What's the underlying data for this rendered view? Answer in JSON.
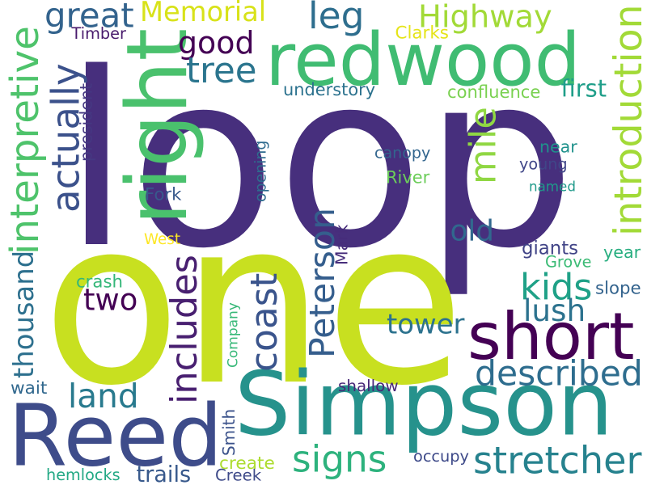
{
  "words": [
    {
      "text": "loop",
      "color": "#472f7d"
    },
    {
      "text": "one",
      "color": "#c8e020"
    },
    {
      "text": "Simpson",
      "color": "#26928c"
    },
    {
      "text": "Reed",
      "color": "#3e4c8a"
    },
    {
      "text": "redwood",
      "color": "#40bc72"
    },
    {
      "text": "short",
      "color": "#440154"
    },
    {
      "text": "right",
      "color": "#4ac16d"
    },
    {
      "text": "Highway",
      "color": "#a2da37"
    },
    {
      "text": "introduction",
      "color": "#a2da37"
    },
    {
      "text": "interpretive",
      "color": "#4ec36b"
    },
    {
      "text": "thousand",
      "color": "#2d708e"
    },
    {
      "text": "actually",
      "color": "#3b518b"
    },
    {
      "text": "stretcher",
      "color": "#26828e"
    },
    {
      "text": "described",
      "color": "#2e6d8e"
    },
    {
      "text": "includes",
      "color": "#481f70"
    },
    {
      "text": "Peterson",
      "color": "#355e8d"
    },
    {
      "text": "signs",
      "color": "#2db27d"
    },
    {
      "text": "coast",
      "color": "#3a548c"
    },
    {
      "text": "great",
      "color": "#33638d"
    },
    {
      "text": "Memorial",
      "color": "#d8e219"
    },
    {
      "text": "good",
      "color": "#440154"
    },
    {
      "text": "tree",
      "color": "#2b758e"
    },
    {
      "text": "leg",
      "color": "#2e6e8e"
    },
    {
      "text": "mile",
      "color": "#90d743"
    },
    {
      "text": "land",
      "color": "#297a8e"
    },
    {
      "text": "two",
      "color": "#440154"
    },
    {
      "text": "old",
      "color": "#31688e"
    },
    {
      "text": "kids",
      "color": "#1fa187"
    },
    {
      "text": "year",
      "color": "#28ae80"
    },
    {
      "text": "lush",
      "color": "#2c728e"
    },
    {
      "text": "tower",
      "color": "#2c728e"
    },
    {
      "text": "understory",
      "color": "#2c728e"
    },
    {
      "text": "confluence",
      "color": "#7ad151"
    },
    {
      "text": "first",
      "color": "#1f9e89"
    },
    {
      "text": "canopy",
      "color": "#32658e"
    },
    {
      "text": "River",
      "color": "#6ccd5a"
    },
    {
      "text": "young",
      "color": "#404688"
    },
    {
      "text": "named",
      "color": "#1f9a8a"
    },
    {
      "text": "near",
      "color": "#20928c"
    },
    {
      "text": "Fork",
      "color": "#38598c"
    },
    {
      "text": "West",
      "color": "#fde725"
    },
    {
      "text": "crash",
      "color": "#35b779"
    },
    {
      "text": "giants",
      "color": "#414487"
    },
    {
      "text": "Grove",
      "color": "#3bbb75"
    },
    {
      "text": "slope",
      "color": "#33638d"
    },
    {
      "text": "shallow",
      "color": "#482878"
    },
    {
      "text": "wait",
      "color": "#31688e"
    },
    {
      "text": "hemlocks",
      "color": "#22a884"
    },
    {
      "text": "trails",
      "color": "#38598c"
    },
    {
      "text": "Creek",
      "color": "#3e4a89"
    },
    {
      "text": "create",
      "color": "#addc30"
    },
    {
      "text": "occupy",
      "color": "#3e4a89"
    },
    {
      "text": "Timber",
      "color": "#481a6c"
    },
    {
      "text": "Clarks",
      "color": "#e5e419"
    },
    {
      "text": "president",
      "color": "#453882"
    },
    {
      "text": "opening",
      "color": "#2f6b8e"
    },
    {
      "text": "Mark",
      "color": "#472d7b"
    },
    {
      "text": "Company",
      "color": "#37b878"
    },
    {
      "text": "Smith",
      "color": "#3b528b"
    }
  ]
}
